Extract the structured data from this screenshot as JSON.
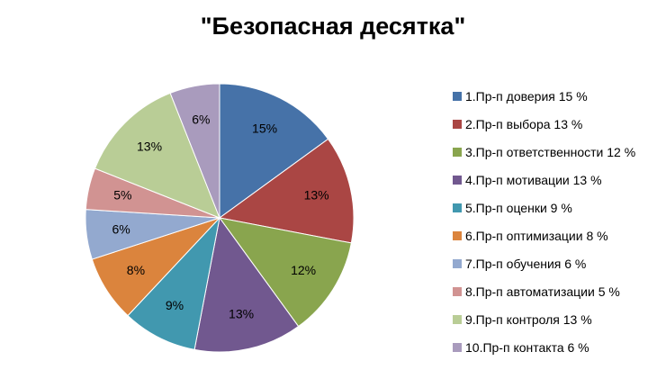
{
  "chart_data": {
    "type": "pie",
    "title": "\"Безопасная десятка\"",
    "values": [
      15,
      13,
      12,
      13,
      9,
      8,
      6,
      5,
      13,
      6
    ],
    "data_labels": [
      "15%",
      "13%",
      "12%",
      "13%",
      "9%",
      "8%",
      "6%",
      "5%",
      "13%",
      "6%"
    ],
    "legend": [
      "1.Пр-п доверия 15 %",
      "2.Пр-п выбора 13 %",
      "3.Пр-п ответственности 12 %",
      "4.Пр-п мотивации 13 %",
      "5.Пр-п оценки 9 %",
      "6.Пр-п оптимизации 8 %",
      "7.Пр-п обучения 6 %",
      "8.Пр-п автоматизации 5 %",
      "9.Пр-п контроля 13 %",
      "10.Пр-п контакта 6 %"
    ],
    "colors": [
      "#4672A8",
      "#AA4644",
      "#89A54E",
      "#71588F",
      "#4198AF",
      "#DB843D",
      "#93A9CF",
      "#D19392",
      "#B9CD96",
      "#A99BBD"
    ],
    "legend_position": "right"
  }
}
